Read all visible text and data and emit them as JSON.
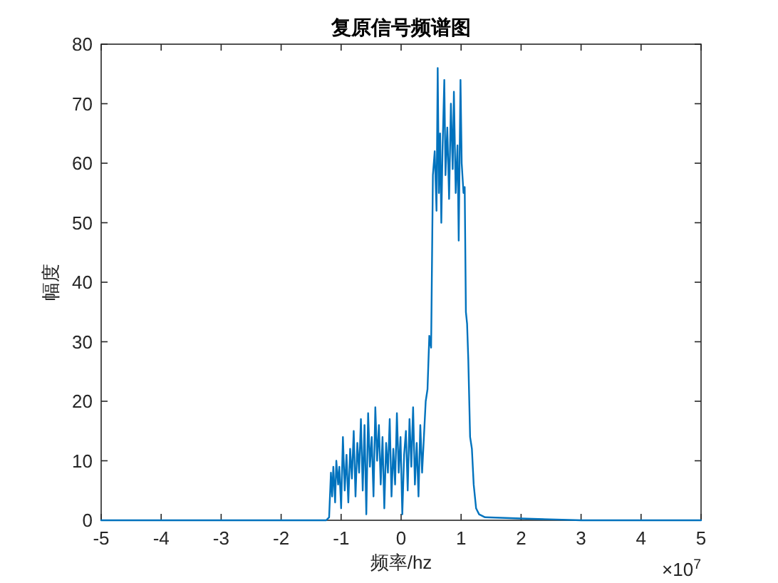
{
  "chart_data": {
    "type": "line",
    "title": "复原信号频谱图",
    "xlabel": "频率/hz",
    "ylabel": "幅度",
    "annotations": [
      "×10$^{7}$"
    ],
    "x": [
      -5,
      -1.25,
      -1.2,
      -1.17,
      -1.15,
      -1.13,
      -1.1,
      -1.08,
      -1.05,
      -1.03,
      -1.0,
      -0.97,
      -0.94,
      -0.91,
      -0.88,
      -0.85,
      -0.82,
      -0.79,
      -0.76,
      -0.73,
      -0.7,
      -0.67,
      -0.64,
      -0.61,
      -0.58,
      -0.55,
      -0.52,
      -0.49,
      -0.46,
      -0.43,
      -0.4,
      -0.37,
      -0.34,
      -0.31,
      -0.28,
      -0.25,
      -0.22,
      -0.19,
      -0.16,
      -0.13,
      -0.1,
      -0.07,
      -0.04,
      -0.01,
      0.02,
      0.05,
      0.08,
      0.11,
      0.14,
      0.17,
      0.2,
      0.23,
      0.26,
      0.29,
      0.32,
      0.35,
      0.38,
      0.41,
      0.44,
      0.47,
      0.5,
      0.53,
      0.56,
      0.59,
      0.61,
      0.63,
      0.65,
      0.67,
      0.69,
      0.72,
      0.74,
      0.77,
      0.8,
      0.83,
      0.86,
      0.88,
      0.91,
      0.94,
      0.96,
      0.99,
      1.01,
      1.04,
      1.06,
      1.08,
      1.1,
      1.12,
      1.15,
      1.18,
      1.21,
      1.25,
      1.3,
      1.4,
      2.0,
      3.0,
      5
    ],
    "values": [
      0,
      0,
      0.5,
      8,
      4,
      9,
      3,
      10,
      6,
      9,
      2,
      14,
      5,
      11,
      3,
      12,
      7,
      15,
      4,
      13,
      8,
      17,
      5,
      16,
      1,
      18,
      9,
      14,
      4,
      19,
      10,
      16,
      6,
      14,
      2,
      13,
      8,
      17,
      4,
      12,
      6,
      18,
      8,
      14,
      1,
      11,
      15,
      5,
      17,
      9,
      19,
      6,
      13,
      4,
      16,
      8,
      14,
      20,
      22,
      31,
      29,
      58,
      62,
      52,
      76,
      55,
      65,
      50,
      62,
      74,
      58,
      66,
      54,
      70,
      59,
      72,
      55,
      63,
      47,
      74,
      60,
      55,
      56,
      35,
      33,
      27,
      14,
      12,
      6,
      2,
      1,
      0.5,
      0.3,
      0,
      0
    ],
    "color": "#0072bd",
    "xlim": [
      -5,
      5
    ],
    "xticks": [
      -5,
      -4,
      -3,
      -2,
      -1,
      0,
      1,
      2,
      3,
      4,
      5
    ],
    "ylim": [
      0,
      80
    ],
    "yticks": [
      0,
      10,
      20,
      30,
      40,
      50,
      60,
      70,
      80
    ]
  }
}
